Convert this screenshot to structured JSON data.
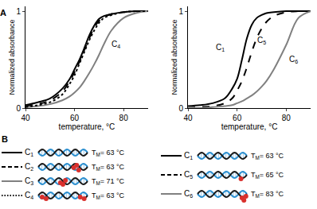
{
  "chart_data": [
    {
      "type": "line",
      "panel": "A",
      "x_label": "temperature, °C",
      "y_label": "Normalized absorbance",
      "x": [
        40,
        45,
        50,
        55,
        58,
        60,
        62,
        64,
        66,
        68,
        70,
        72,
        75,
        80,
        85,
        90
      ],
      "xlim": [
        40,
        90
      ],
      "xticks": [
        40,
        60,
        80
      ],
      "ylim": [
        0,
        1.05
      ],
      "yticks": [
        0,
        1
      ],
      "grid": false,
      "series": [
        {
          "name": "C1",
          "color": "#000000",
          "line_style": "solid",
          "values": [
            0.03,
            0.06,
            0.1,
            0.2,
            0.3,
            0.4,
            0.5,
            0.62,
            0.75,
            0.85,
            0.92,
            0.95,
            0.97,
            0.99,
            1,
            1
          ]
        },
        {
          "name": "C2",
          "color": "#000000",
          "line_style": "dash",
          "values": [
            0.02,
            0.04,
            0.08,
            0.17,
            0.28,
            0.37,
            0.48,
            0.6,
            0.72,
            0.83,
            0.9,
            0.94,
            0.97,
            0.99,
            1,
            1
          ]
        },
        {
          "name": "C3",
          "color": "#808080",
          "line_style": "solid",
          "values": [
            0.01,
            0.02,
            0.04,
            0.08,
            0.12,
            0.16,
            0.21,
            0.28,
            0.36,
            0.45,
            0.55,
            0.66,
            0.8,
            0.93,
            0.98,
            1
          ]
        },
        {
          "name": "C4",
          "color": "#000000",
          "line_style": "dot",
          "values": [
            0.01,
            0.03,
            0.06,
            0.14,
            0.25,
            0.34,
            0.46,
            0.58,
            0.7,
            0.8,
            0.88,
            0.93,
            0.96,
            0.99,
            1,
            1
          ]
        }
      ],
      "annotations": [
        {
          "text": "C4",
          "x": 77,
          "y": 0.66
        }
      ]
    },
    {
      "type": "line",
      "x_label": "temperature, °C",
      "y_label": "Normalized absorbance",
      "x": [
        40,
        45,
        50,
        55,
        58,
        60,
        62,
        64,
        66,
        68,
        70,
        72,
        75,
        80,
        85,
        90
      ],
      "xlim": [
        40,
        90
      ],
      "xticks": [
        40,
        60,
        80
      ],
      "ylim": [
        0,
        1.05
      ],
      "yticks": [
        0,
        1
      ],
      "grid": false,
      "series": [
        {
          "name": "C1",
          "color": "#000000",
          "line_style": "solid",
          "values": [
            0.02,
            0.03,
            0.05,
            0.1,
            0.2,
            0.3,
            0.5,
            0.72,
            0.86,
            0.93,
            0.96,
            0.98,
            0.99,
            1,
            1,
            1
          ]
        },
        {
          "name": "C5",
          "color": "#000000",
          "line_style": "dash",
          "values": [
            0,
            0.01,
            0.02,
            0.05,
            0.1,
            0.18,
            0.28,
            0.42,
            0.58,
            0.72,
            0.82,
            0.89,
            0.95,
            0.99,
            1,
            1
          ]
        },
        {
          "name": "C6",
          "color": "#808080",
          "line_style": "solid",
          "values": [
            0,
            0,
            0.01,
            0.02,
            0.03,
            0.05,
            0.07,
            0.1,
            0.13,
            0.17,
            0.22,
            0.28,
            0.4,
            0.65,
            0.93,
            1
          ]
        }
      ],
      "annotations": [
        {
          "text": "C1",
          "x": 53,
          "y": 0.62
        },
        {
          "text": "C5",
          "x": 70,
          "y": 0.7
        },
        {
          "text": "C6",
          "x": 83,
          "y": 0.5
        }
      ]
    }
  ],
  "diagram": {
    "panel": "B",
    "columns": [
      [
        {
          "name": "C1",
          "color": "#000000",
          "line_style": "solid",
          "tm": "TM= 63 °C"
        },
        {
          "name": "C2",
          "color": "#000000",
          "line_style": "dash",
          "tm": "TM= 63 °C"
        },
        {
          "name": "C3",
          "color": "#808080",
          "line_style": "solid",
          "tm": "TM= 71 °C"
        },
        {
          "name": "C4",
          "color": "#000000",
          "line_style": "dot",
          "tm": "TM= 63 °C"
        }
      ],
      [
        {
          "name": "C1",
          "color": "#000000",
          "line_style": "solid",
          "tm": "TM= 63 °C"
        },
        {
          "name": "C5",
          "color": "#000000",
          "line_style": "dash",
          "tm": "TM= 65 °C"
        },
        {
          "name": "C6",
          "color": "#808080",
          "line_style": "solid",
          "tm": "TM= 83 °C"
        }
      ]
    ]
  }
}
